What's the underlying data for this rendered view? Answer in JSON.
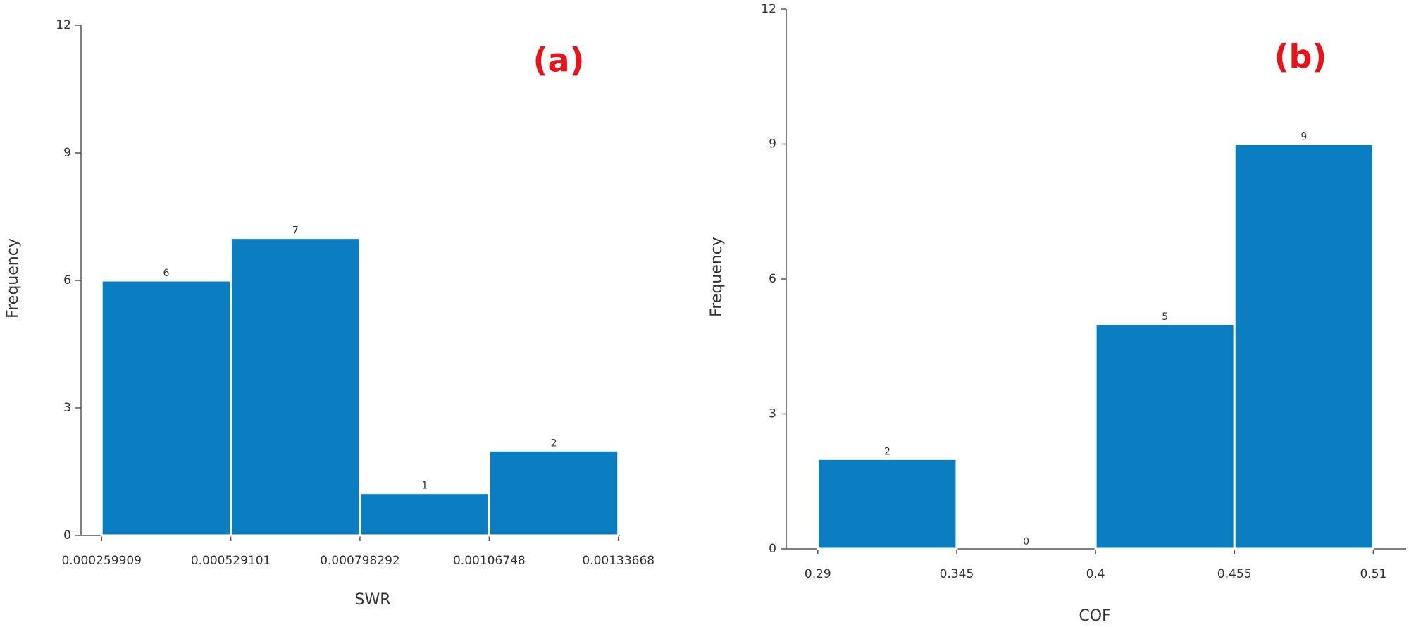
{
  "chart_data": [
    {
      "type": "histogram",
      "annotation": "(a)",
      "xlabel": "SWR",
      "ylabel": "Frequency",
      "bins": [
        0.000259909,
        0.000529101,
        0.000798292,
        0.00106748,
        0.00133668
      ],
      "values": [
        6,
        7,
        1,
        2
      ],
      "color": "#0b7dc1",
      "xlim": [
        0.000217,
        0.00134
      ],
      "xticks": [
        0.000259909,
        0.000529101,
        0.000798292,
        0.00106748,
        0.00133668
      ],
      "ylim": [
        0,
        12
      ],
      "yticks": [
        0,
        3,
        6,
        9,
        12
      ]
    },
    {
      "type": "histogram",
      "annotation": "(b)",
      "xlabel": "COF",
      "ylabel": "Frequency",
      "bins": [
        0.29,
        0.345,
        0.4,
        0.455,
        0.51
      ],
      "values": [
        2,
        0,
        5,
        9
      ],
      "color": "#0b7dc1",
      "xlim": [
        0.2775,
        0.523
      ],
      "xticks": [
        0.29,
        0.345,
        0.4,
        0.455,
        0.51
      ],
      "ylim": [
        0,
        12
      ],
      "yticks": [
        0,
        3,
        6,
        9,
        12
      ]
    }
  ]
}
